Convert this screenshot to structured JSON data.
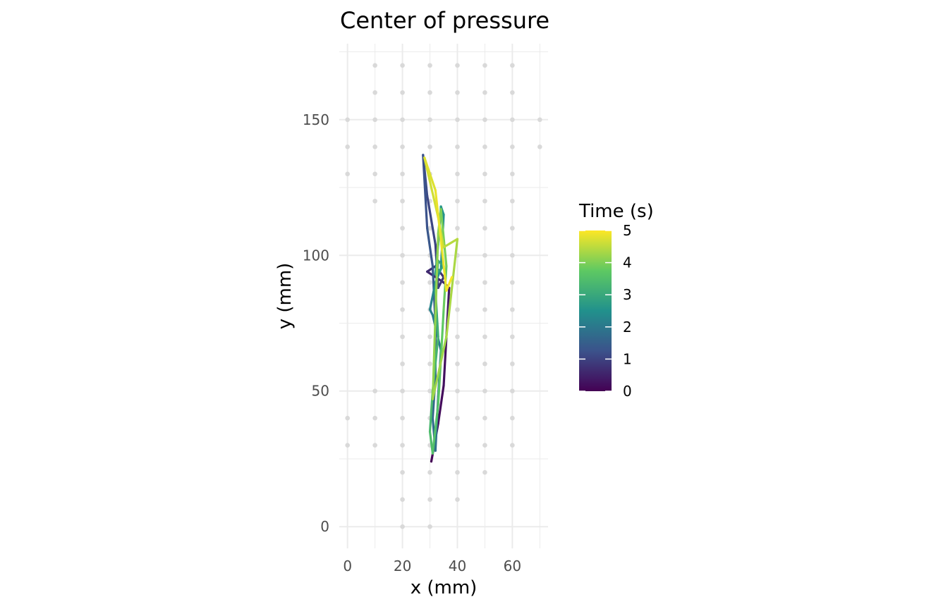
{
  "chart_data": {
    "type": "line",
    "title": "Center of pressure",
    "xlabel": "x (mm)",
    "ylabel": "y (mm)",
    "xlim": [
      -3,
      73
    ],
    "ylim": [
      -8,
      178
    ],
    "x_ticks": [
      0,
      20,
      40,
      60
    ],
    "y_ticks": [
      0,
      50,
      100,
      150
    ],
    "grid": true,
    "legend": {
      "title": "Time (s)",
      "placement": "right",
      "range": [
        0,
        5
      ],
      "ticks": [
        0,
        1,
        2,
        3,
        4,
        5
      ],
      "colormap": [
        "#440154",
        "#3b528b",
        "#21918c",
        "#5ec962",
        "#fde725"
      ]
    },
    "sensor_color": "#d9d9d9",
    "sensors": [
      [
        0,
        150
      ],
      [
        0,
        140
      ],
      [
        0,
        130
      ],
      [
        0,
        40
      ],
      [
        0,
        30
      ],
      [
        10,
        170
      ],
      [
        10,
        160
      ],
      [
        10,
        150
      ],
      [
        10,
        140
      ],
      [
        10,
        130
      ],
      [
        10,
        120
      ],
      [
        10,
        50
      ],
      [
        10,
        40
      ],
      [
        10,
        30
      ],
      [
        20,
        170
      ],
      [
        20,
        160
      ],
      [
        20,
        150
      ],
      [
        20,
        140
      ],
      [
        20,
        130
      ],
      [
        20,
        120
      ],
      [
        20,
        110
      ],
      [
        20,
        100
      ],
      [
        20,
        90
      ],
      [
        20,
        80
      ],
      [
        20,
        70
      ],
      [
        20,
        60
      ],
      [
        20,
        50
      ],
      [
        20,
        40
      ],
      [
        20,
        30
      ],
      [
        20,
        20
      ],
      [
        20,
        10
      ],
      [
        20,
        0
      ],
      [
        30,
        170
      ],
      [
        30,
        160
      ],
      [
        30,
        150
      ],
      [
        30,
        140
      ],
      [
        30,
        130
      ],
      [
        30,
        120
      ],
      [
        30,
        110
      ],
      [
        30,
        100
      ],
      [
        30,
        90
      ],
      [
        30,
        80
      ],
      [
        30,
        70
      ],
      [
        30,
        60
      ],
      [
        30,
        50
      ],
      [
        30,
        40
      ],
      [
        30,
        30
      ],
      [
        30,
        20
      ],
      [
        30,
        10
      ],
      [
        30,
        0
      ],
      [
        40,
        170
      ],
      [
        40,
        160
      ],
      [
        40,
        150
      ],
      [
        40,
        140
      ],
      [
        40,
        130
      ],
      [
        40,
        120
      ],
      [
        40,
        110
      ],
      [
        40,
        100
      ],
      [
        40,
        90
      ],
      [
        40,
        80
      ],
      [
        40,
        70
      ],
      [
        40,
        60
      ],
      [
        40,
        50
      ],
      [
        40,
        40
      ],
      [
        40,
        30
      ],
      [
        40,
        20
      ],
      [
        40,
        10
      ],
      [
        50,
        170
      ],
      [
        50,
        160
      ],
      [
        50,
        150
      ],
      [
        50,
        140
      ],
      [
        50,
        130
      ],
      [
        50,
        120
      ],
      [
        50,
        110
      ],
      [
        50,
        100
      ],
      [
        50,
        90
      ],
      [
        50,
        80
      ],
      [
        50,
        70
      ],
      [
        50,
        60
      ],
      [
        50,
        50
      ],
      [
        50,
        40
      ],
      [
        50,
        30
      ],
      [
        50,
        20
      ],
      [
        60,
        170
      ],
      [
        60,
        160
      ],
      [
        60,
        150
      ],
      [
        60,
        140
      ],
      [
        60,
        130
      ],
      [
        60,
        120
      ],
      [
        60,
        110
      ],
      [
        60,
        100
      ],
      [
        60,
        90
      ],
      [
        60,
        80
      ],
      [
        60,
        70
      ],
      [
        60,
        60
      ],
      [
        60,
        50
      ],
      [
        60,
        40
      ],
      [
        60,
        30
      ],
      [
        70,
        150
      ],
      [
        70,
        140
      ]
    ],
    "path": [
      {
        "t": 0.0,
        "x": 30.5,
        "y": 24
      },
      {
        "t": 0.1,
        "x": 33,
        "y": 38
      },
      {
        "t": 0.2,
        "x": 35,
        "y": 52
      },
      {
        "t": 0.3,
        "x": 36,
        "y": 70
      },
      {
        "t": 0.4,
        "x": 37,
        "y": 88
      },
      {
        "t": 0.5,
        "x": 35,
        "y": 90
      },
      {
        "t": 0.6,
        "x": 29,
        "y": 94
      },
      {
        "t": 0.7,
        "x": 32,
        "y": 96
      },
      {
        "t": 0.8,
        "x": 35,
        "y": 92
      },
      {
        "t": 0.9,
        "x": 33,
        "y": 88
      },
      {
        "t": 1.0,
        "x": 32,
        "y": 104
      },
      {
        "t": 1.1,
        "x": 29,
        "y": 122
      },
      {
        "t": 1.2,
        "x": 27.5,
        "y": 137
      },
      {
        "t": 1.3,
        "x": 29,
        "y": 110
      },
      {
        "t": 1.4,
        "x": 31,
        "y": 96
      },
      {
        "t": 1.5,
        "x": 32,
        "y": 75
      },
      {
        "t": 1.6,
        "x": 32,
        "y": 55
      },
      {
        "t": 1.7,
        "x": 31,
        "y": 40
      },
      {
        "t": 1.8,
        "x": 32,
        "y": 28
      },
      {
        "t": 1.9,
        "x": 33,
        "y": 48
      },
      {
        "t": 2.0,
        "x": 34,
        "y": 65
      },
      {
        "t": 2.1,
        "x": 31,
        "y": 78
      },
      {
        "t": 2.2,
        "x": 30,
        "y": 80
      },
      {
        "t": 2.3,
        "x": 32,
        "y": 90
      },
      {
        "t": 2.4,
        "x": 34,
        "y": 95
      },
      {
        "t": 2.5,
        "x": 35,
        "y": 115
      },
      {
        "t": 2.6,
        "x": 34,
        "y": 118
      },
      {
        "t": 2.7,
        "x": 33,
        "y": 104
      },
      {
        "t": 2.8,
        "x": 32,
        "y": 93
      },
      {
        "t": 2.9,
        "x": 35,
        "y": 96
      },
      {
        "t": 3.0,
        "x": 33,
        "y": 98
      },
      {
        "t": 3.1,
        "x": 32,
        "y": 87
      },
      {
        "t": 3.2,
        "x": 33,
        "y": 70
      },
      {
        "t": 3.3,
        "x": 31,
        "y": 50
      },
      {
        "t": 3.4,
        "x": 30,
        "y": 35
      },
      {
        "t": 3.5,
        "x": 31,
        "y": 27
      },
      {
        "t": 3.6,
        "x": 33,
        "y": 45
      },
      {
        "t": 3.7,
        "x": 34,
        "y": 62
      },
      {
        "t": 3.8,
        "x": 35,
        "y": 80
      },
      {
        "t": 3.9,
        "x": 36,
        "y": 96
      },
      {
        "t": 4.0,
        "x": 34,
        "y": 117
      },
      {
        "t": 4.1,
        "x": 33,
        "y": 108
      },
      {
        "t": 4.2,
        "x": 31,
        "y": 47
      },
      {
        "t": 4.3,
        "x": 36,
        "y": 70
      },
      {
        "t": 4.4,
        "x": 40,
        "y": 106
      },
      {
        "t": 4.5,
        "x": 35,
        "y": 103
      },
      {
        "t": 4.6,
        "x": 33,
        "y": 114
      },
      {
        "t": 4.7,
        "x": 28,
        "y": 136
      },
      {
        "t": 4.8,
        "x": 32,
        "y": 124
      },
      {
        "t": 4.9,
        "x": 36,
        "y": 87
      },
      {
        "t": 5.0,
        "x": 38,
        "y": 92
      }
    ]
  }
}
